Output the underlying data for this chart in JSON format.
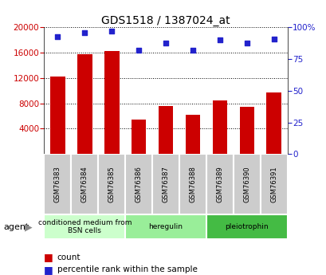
{
  "title": "GDS1518 / 1387024_at",
  "categories": [
    "GSM76383",
    "GSM76384",
    "GSM76385",
    "GSM76386",
    "GSM76387",
    "GSM76388",
    "GSM76389",
    "GSM76390",
    "GSM76391"
  ],
  "counts": [
    12200,
    15800,
    16300,
    5400,
    7600,
    6200,
    8500,
    7400,
    9700
  ],
  "percentile": [
    93,
    96,
    97,
    82,
    88,
    82,
    90,
    88,
    91
  ],
  "ylim_left": [
    0,
    20000
  ],
  "ylim_right": [
    0,
    100
  ],
  "yticks_left": [
    4000,
    8000,
    12000,
    16000,
    20000
  ],
  "yticks_right": [
    0,
    25,
    50,
    75,
    100
  ],
  "bar_color": "#cc0000",
  "dot_color": "#2222cc",
  "grid_color": "#000000",
  "agent_groups": [
    {
      "label": "conditioned medium from\nBSN cells",
      "start": 0,
      "end": 3,
      "color": "#ccffcc"
    },
    {
      "label": "heregulin",
      "start": 3,
      "end": 6,
      "color": "#99ee99"
    },
    {
      "label": "pleiotrophin",
      "start": 6,
      "end": 9,
      "color": "#44bb44"
    }
  ],
  "legend_count_label": "count",
  "legend_pct_label": "percentile rank within the sample",
  "agent_label": "agent",
  "background_color": "#ffffff",
  "plot_bg_color": "#ffffff",
  "tick_label_color_left": "#cc0000",
  "tick_label_color_right": "#2222cc",
  "bar_width": 0.55,
  "cell_bg": "#cccccc",
  "cell_border": "#ffffff"
}
